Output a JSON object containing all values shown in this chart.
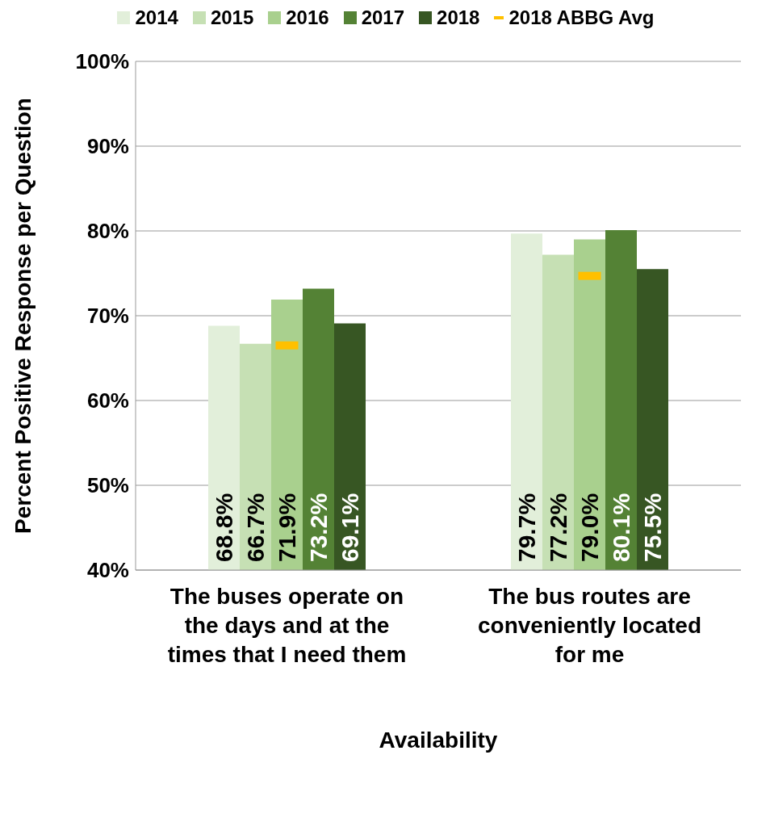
{
  "chart_data": {
    "type": "bar",
    "categories": [
      "The buses operate on the days and at the times that I need them",
      "The bus routes are conveniently located for me"
    ],
    "xlabel": "Availability",
    "ylabel": "Percent Positive Response per Question",
    "series": [
      {
        "name": "2014",
        "color": "#e2efda",
        "values": [
          68.8,
          79.7
        ],
        "value_labels": [
          "68.8%",
          "79.7%"
        ]
      },
      {
        "name": "2015",
        "color": "#c6e0b4",
        "values": [
          66.7,
          77.2
        ],
        "value_labels": [
          "66.7%",
          "77.2%"
        ]
      },
      {
        "name": "2016",
        "color": "#a9d08e",
        "values": [
          71.9,
          79.0
        ],
        "value_labels": [
          "71.9%",
          "79.0%"
        ]
      },
      {
        "name": "2017",
        "color": "#548235",
        "values": [
          73.2,
          80.1
        ],
        "value_labels": [
          "73.2%",
          "80.1%"
        ]
      },
      {
        "name": "2018",
        "color": "#375623",
        "values": [
          69.1,
          75.5
        ],
        "value_labels": [
          "69.1%",
          "75.5%"
        ]
      },
      {
        "name": "2018 ABBG Avg",
        "type": "scatter",
        "color": "#ffc000",
        "values": [
          66.5,
          74.7
        ]
      }
    ],
    "ylim": [
      40,
      100
    ],
    "yticks": [
      {
        "value": 40,
        "label": "40%"
      },
      {
        "value": 50,
        "label": "50%"
      },
      {
        "value": 60,
        "label": "60%"
      },
      {
        "value": 70,
        "label": "70%"
      },
      {
        "value": 80,
        "label": "80%"
      },
      {
        "value": 90,
        "label": "90%"
      },
      {
        "value": 100,
        "label": "100%"
      }
    ],
    "grid": "y",
    "legend": "top"
  }
}
